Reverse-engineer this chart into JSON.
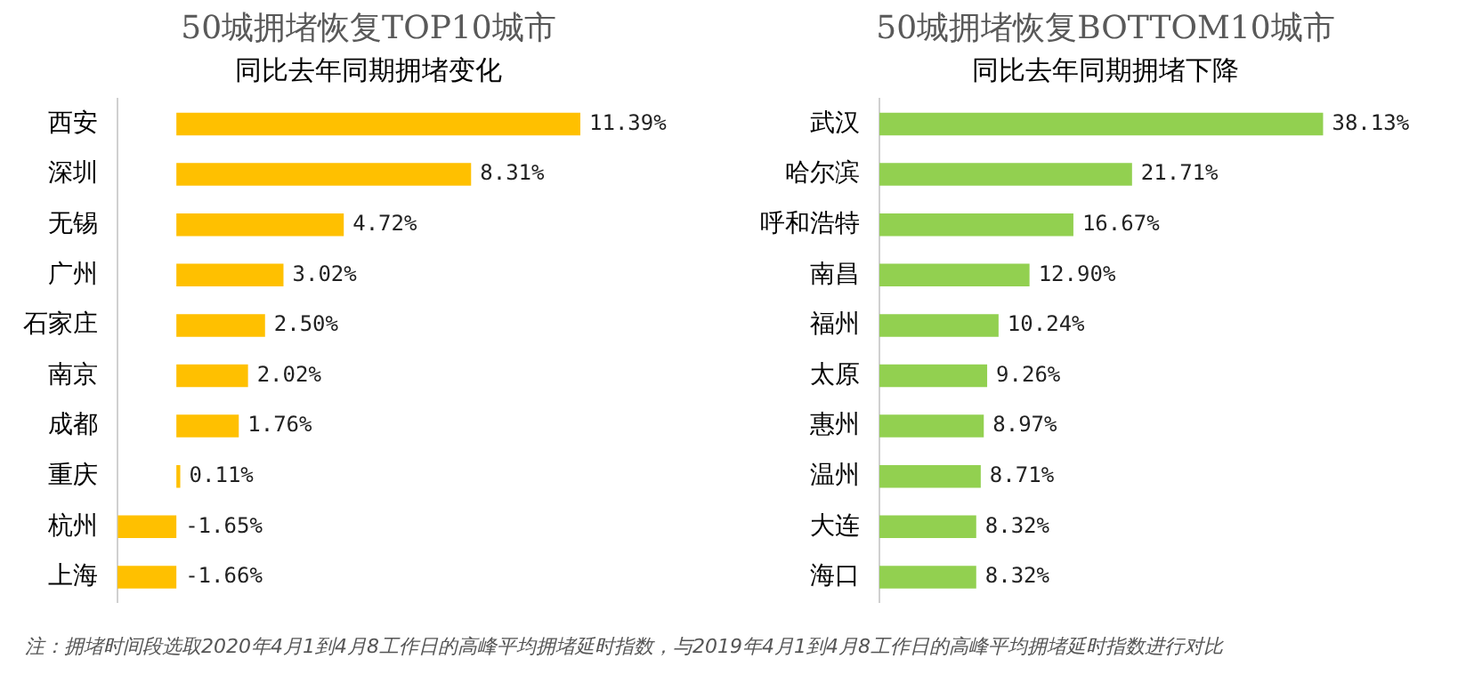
{
  "chart_data": [
    {
      "type": "bar",
      "orientation": "horizontal",
      "title": "50城拥堵恢复TOP10城市",
      "subtitle": "同比去年同期拥堵变化",
      "categories": [
        "西安",
        "深圳",
        "无锡",
        "广州",
        "石家庄",
        "南京",
        "成都",
        "重庆",
        "杭州",
        "上海"
      ],
      "values": [
        11.39,
        8.31,
        4.72,
        3.02,
        2.5,
        2.02,
        1.76,
        0.11,
        -1.65,
        -1.66
      ],
      "value_labels": [
        "11.39%",
        "8.31%",
        "4.72%",
        "3.02%",
        "2.50%",
        "2.02%",
        "1.76%",
        "0.11%",
        "-1.65%",
        "-1.66%"
      ],
      "color": "#ffc000",
      "grid": false,
      "legend": false,
      "tick_labels": "y",
      "annotations": [
        "注：拥堵时间段选取2020年4月1到4月8工作日的高峰平均拥堵延时指数，与2019年4月1到4月8工作日的高峰平均拥堵延时指数进行对比"
      ]
    },
    {
      "type": "bar",
      "orientation": "horizontal",
      "title": "50城拥堵恢复BOTTOM10城市",
      "subtitle": "同比去年同期拥堵下降",
      "categories": [
        "武汉",
        "哈尔滨",
        "呼和浩特",
        "南昌",
        "福州",
        "太原",
        "惠州",
        "温州",
        "大连",
        "海口"
      ],
      "values": [
        38.13,
        21.71,
        16.67,
        12.9,
        10.24,
        9.26,
        8.97,
        8.71,
        8.32,
        8.32
      ],
      "value_labels": [
        "38.13%",
        "21.71%",
        "16.67%",
        "12.90%",
        "10.24%",
        "9.26%",
        "8.97%",
        "8.71%",
        "8.32%",
        "8.32%"
      ],
      "color": "#92d050",
      "grid": false,
      "legend": false,
      "tick_labels": "y"
    }
  ]
}
